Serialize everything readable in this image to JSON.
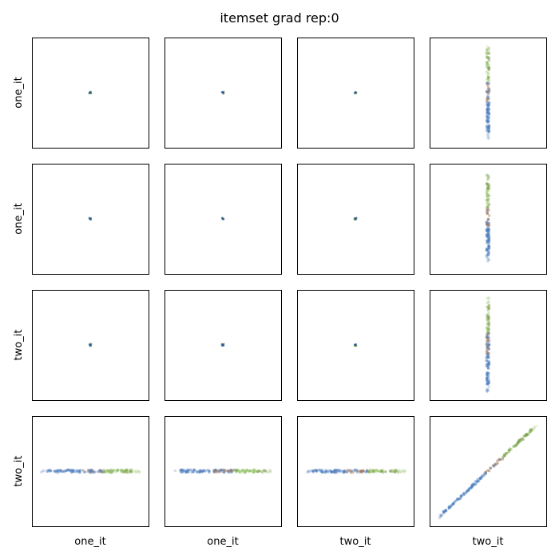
{
  "title": "itemset grad rep:0",
  "row_labels": [
    "one_it",
    "one_it",
    "two_it",
    "two_it"
  ],
  "col_labels": [
    "one_it",
    "one_it",
    "two_it",
    "two_it"
  ],
  "chart_data": {
    "type": "scatter",
    "layout": "4x4 pair grid",
    "title": "itemset grad rep:0",
    "ylabels_left": [
      "one_it",
      "one_it",
      "two_it",
      "two_it"
    ],
    "xlabels_bottom": [
      "one_it",
      "one_it",
      "two_it",
      "two_it"
    ],
    "ticks": "none",
    "grid": false,
    "colors": [
      "#4f7fbf",
      "#7a9a4a",
      "#a0785a",
      "#9fd27a"
    ],
    "panels": [
      {
        "row": 0,
        "col": 0,
        "pattern": "dot",
        "extent": 0.02
      },
      {
        "row": 0,
        "col": 1,
        "pattern": "dot",
        "extent": 0.02
      },
      {
        "row": 0,
        "col": 2,
        "pattern": "dot",
        "extent": 0.02
      },
      {
        "row": 0,
        "col": 3,
        "pattern": "vertical",
        "extent": 0.84
      },
      {
        "row": 1,
        "col": 0,
        "pattern": "dot",
        "extent": 0.02
      },
      {
        "row": 1,
        "col": 1,
        "pattern": "dot",
        "extent": 0.02
      },
      {
        "row": 1,
        "col": 2,
        "pattern": "dot",
        "extent": 0.02
      },
      {
        "row": 1,
        "col": 3,
        "pattern": "vertical",
        "extent": 0.8
      },
      {
        "row": 2,
        "col": 0,
        "pattern": "dot",
        "extent": 0.02
      },
      {
        "row": 2,
        "col": 1,
        "pattern": "dot",
        "extent": 0.02
      },
      {
        "row": 2,
        "col": 2,
        "pattern": "dot",
        "extent": 0.02
      },
      {
        "row": 2,
        "col": 3,
        "pattern": "vertical",
        "extent": 0.86
      },
      {
        "row": 3,
        "col": 0,
        "pattern": "horizontal",
        "extent": 0.86
      },
      {
        "row": 3,
        "col": 1,
        "pattern": "horizontal",
        "extent": 0.86
      },
      {
        "row": 3,
        "col": 2,
        "pattern": "horizontal",
        "extent": 0.86
      },
      {
        "row": 3,
        "col": 3,
        "pattern": "diagonal",
        "extent": 0.84
      }
    ]
  }
}
